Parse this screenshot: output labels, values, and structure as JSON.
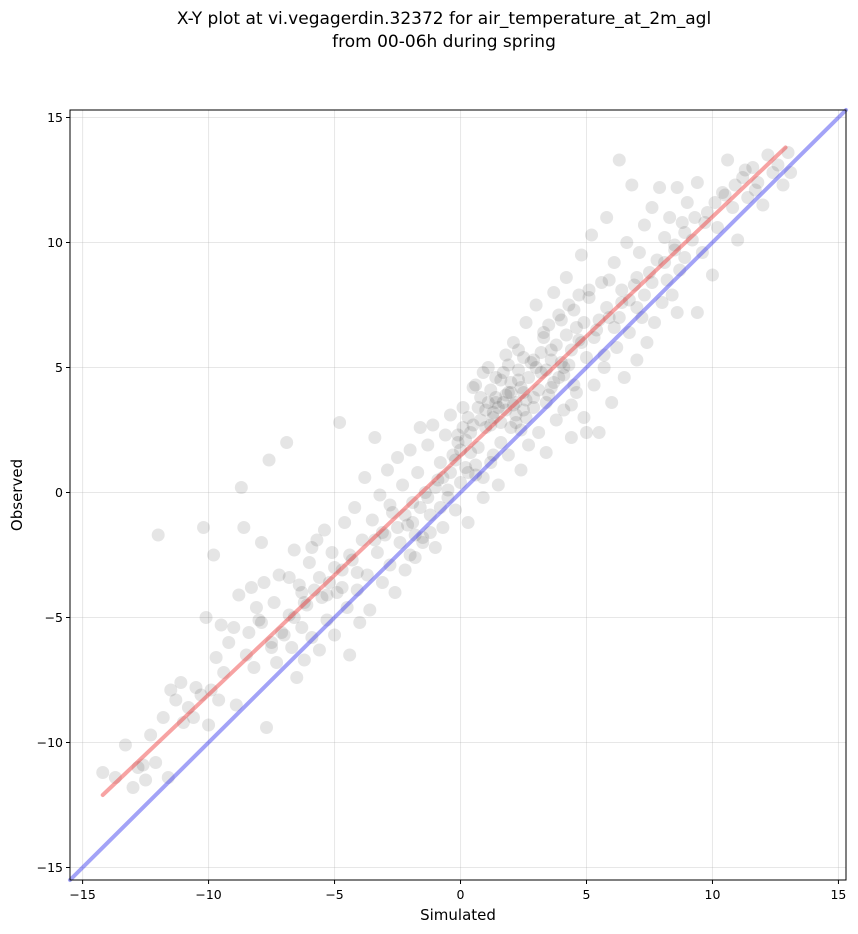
{
  "chart_data": {
    "type": "scatter",
    "title": "X-Y plot at vi.vegagerdin.32372 for air_temperature_at_2m_agl",
    "subtitle": "from 00-06h during spring",
    "xlabel": "Simulated",
    "ylabel": "Observed",
    "xlim": [
      -15.5,
      15.3
    ],
    "ylim": [
      -15.5,
      15.3
    ],
    "xticks": [
      -15,
      -10,
      -5,
      0,
      5,
      10,
      15
    ],
    "yticks": [
      -15,
      -10,
      -5,
      0,
      5,
      10,
      15
    ],
    "xtick_labels": [
      "−15",
      "−10",
      "−5",
      "0",
      "5",
      "10",
      "15"
    ],
    "ytick_labels": [
      "−15",
      "−10",
      "−5",
      "0",
      "5",
      "10",
      "15"
    ],
    "grid": true,
    "marker_color": "#000000",
    "marker_alpha": 0.1,
    "fit_line": {
      "color": "#ee3333",
      "x": [
        -14.2,
        12.9
      ],
      "y": [
        -12.1,
        13.8
      ]
    },
    "identity_line": {
      "color": "#3333ee",
      "x": [
        -15.5,
        15.3
      ],
      "y": [
        -15.5,
        15.3
      ]
    },
    "points": [
      [
        -14.2,
        -11.2
      ],
      [
        -13.3,
        -10.1
      ],
      [
        -13.0,
        -11.8
      ],
      [
        -12.8,
        -11.0
      ],
      [
        -12.5,
        -11.5
      ],
      [
        -12.3,
        -9.7
      ],
      [
        -12.1,
        -10.8
      ],
      [
        -12.0,
        -1.7
      ],
      [
        -11.8,
        -9.0
      ],
      [
        -11.6,
        -11.4
      ],
      [
        -11.3,
        -8.3
      ],
      [
        -11.1,
        -7.6
      ],
      [
        -11.0,
        -9.2
      ],
      [
        -10.8,
        -8.6
      ],
      [
        -10.6,
        -9.0
      ],
      [
        -10.5,
        -7.8
      ],
      [
        -10.3,
        -8.1
      ],
      [
        -10.2,
        -1.4
      ],
      [
        -10.0,
        -9.3
      ],
      [
        -9.9,
        -7.9
      ],
      [
        -9.8,
        -2.5
      ],
      [
        -9.7,
        -6.6
      ],
      [
        -9.6,
        -8.3
      ],
      [
        -9.4,
        -7.2
      ],
      [
        -9.2,
        -6.0
      ],
      [
        -9.0,
        -5.4
      ],
      [
        -8.9,
        -8.5
      ],
      [
        -8.8,
        -4.1
      ],
      [
        -8.7,
        0.2
      ],
      [
        -8.6,
        -1.4
      ],
      [
        -8.5,
        -6.5
      ],
      [
        -8.4,
        -5.6
      ],
      [
        -8.2,
        -7.0
      ],
      [
        -8.1,
        -4.6
      ],
      [
        -8.0,
        -5.1
      ],
      [
        -7.9,
        -2.0
      ],
      [
        -7.8,
        -3.6
      ],
      [
        -7.7,
        -9.4
      ],
      [
        -7.6,
        1.3
      ],
      [
        -7.5,
        -6.0
      ],
      [
        -7.4,
        -4.4
      ],
      [
        -7.3,
        -6.8
      ],
      [
        -7.2,
        -3.3
      ],
      [
        -7.0,
        -5.7
      ],
      [
        -6.9,
        2.0
      ],
      [
        -6.8,
        -4.9
      ],
      [
        -6.7,
        -6.2
      ],
      [
        -6.6,
        -2.3
      ],
      [
        -6.5,
        -7.4
      ],
      [
        -6.4,
        -3.7
      ],
      [
        -6.3,
        -5.4
      ],
      [
        -6.2,
        -6.7
      ],
      [
        -6.1,
        -4.5
      ],
      [
        -6.0,
        -2.8
      ],
      [
        -5.9,
        -5.8
      ],
      [
        -5.8,
        -3.9
      ],
      [
        -5.7,
        -1.9
      ],
      [
        -5.6,
        -6.3
      ],
      [
        -5.5,
        -4.2
      ],
      [
        -5.4,
        -1.5
      ],
      [
        -5.3,
        -5.1
      ],
      [
        -5.2,
        -3.6
      ],
      [
        -5.1,
        -2.4
      ],
      [
        -5.0,
        -5.7
      ],
      [
        -4.9,
        -4.0
      ],
      [
        -4.8,
        2.8
      ],
      [
        -4.7,
        -3.1
      ],
      [
        -4.6,
        -1.2
      ],
      [
        -4.5,
        -4.6
      ],
      [
        -4.4,
        -6.5
      ],
      [
        -4.3,
        -2.7
      ],
      [
        -4.2,
        -0.6
      ],
      [
        -4.1,
        -3.9
      ],
      [
        -4.0,
        -5.2
      ],
      [
        -3.9,
        -1.9
      ],
      [
        -3.8,
        0.6
      ],
      [
        -3.7,
        -3.3
      ],
      [
        -3.6,
        -4.7
      ],
      [
        -3.5,
        -1.1
      ],
      [
        -3.4,
        2.2
      ],
      [
        -3.3,
        -2.4
      ],
      [
        -3.2,
        -0.1
      ],
      [
        -3.1,
        -3.6
      ],
      [
        -3.0,
        -1.7
      ],
      [
        -2.9,
        0.9
      ],
      [
        -2.8,
        -2.9
      ],
      [
        -2.7,
        -0.8
      ],
      [
        -2.6,
        -4.0
      ],
      [
        -2.5,
        1.4
      ],
      [
        -2.4,
        -2.0
      ],
      [
        -2.3,
        0.3
      ],
      [
        -2.2,
        -3.1
      ],
      [
        -2.1,
        -1.3
      ],
      [
        -2.0,
        1.7
      ],
      [
        -1.9,
        -0.4
      ],
      [
        -1.8,
        -2.6
      ],
      [
        -1.7,
        0.8
      ],
      [
        -1.6,
        2.6
      ],
      [
        -1.5,
        -1.8
      ],
      [
        -1.4,
        0.0
      ],
      [
        -1.3,
        1.9
      ],
      [
        -1.2,
        -0.9
      ],
      [
        -1.1,
        2.7
      ],
      [
        -1.0,
        -2.2
      ],
      [
        -0.9,
        0.5
      ],
      [
        -0.8,
        1.2
      ],
      [
        -0.7,
        -1.4
      ],
      [
        -0.6,
        2.3
      ],
      [
        -0.5,
        0.1
      ],
      [
        -0.4,
        3.1
      ],
      [
        -0.3,
        1.5
      ],
      [
        -0.2,
        -0.7
      ],
      [
        -0.1,
        2.0
      ],
      [
        0.0,
        0.4
      ],
      [
        0.1,
        3.4
      ],
      [
        0.2,
        1.0
      ],
      [
        0.3,
        -1.2
      ],
      [
        0.4,
        2.4
      ],
      [
        0.5,
        4.2
      ],
      [
        0.6,
        0.7
      ],
      [
        0.7,
        1.8
      ],
      [
        0.8,
        3.8
      ],
      [
        0.9,
        -0.2
      ],
      [
        1.0,
        2.6
      ],
      [
        1.1,
        5.0
      ],
      [
        1.2,
        1.2
      ],
      [
        1.3,
        3.2
      ],
      [
        1.4,
        4.6
      ],
      [
        1.5,
        0.3
      ],
      [
        1.6,
        2.0
      ],
      [
        1.7,
        3.6
      ],
      [
        1.8,
        5.5
      ],
      [
        1.9,
        1.5
      ],
      [
        2.0,
        4.0
      ],
      [
        2.1,
        6.0
      ],
      [
        2.2,
        2.8
      ],
      [
        2.3,
        4.5
      ],
      [
        2.4,
        0.9
      ],
      [
        2.5,
        3.3
      ],
      [
        2.6,
        6.8
      ],
      [
        2.7,
        1.9
      ],
      [
        2.8,
        5.2
      ],
      [
        2.9,
        3.8
      ],
      [
        3.0,
        7.5
      ],
      [
        3.1,
        2.4
      ],
      [
        3.2,
        4.8
      ],
      [
        3.3,
        6.2
      ],
      [
        3.4,
        1.6
      ],
      [
        3.5,
        3.9
      ],
      [
        3.6,
        5.7
      ],
      [
        3.7,
        8.0
      ],
      [
        3.8,
        2.9
      ],
      [
        3.9,
        4.6
      ],
      [
        4.0,
        6.9
      ],
      [
        4.1,
        3.3
      ],
      [
        4.2,
        8.6
      ],
      [
        4.3,
        5.1
      ],
      [
        4.4,
        2.2
      ],
      [
        4.5,
        7.3
      ],
      [
        4.6,
        4.0
      ],
      [
        4.7,
        6.1
      ],
      [
        4.8,
        9.5
      ],
      [
        4.9,
        3.0
      ],
      [
        5.0,
        5.4
      ],
      [
        5.1,
        7.8
      ],
      [
        5.2,
        10.3
      ],
      [
        5.3,
        4.3
      ],
      [
        5.4,
        6.5
      ],
      [
        5.5,
        2.4
      ],
      [
        5.6,
        8.4
      ],
      [
        5.7,
        5.0
      ],
      [
        5.8,
        11.0
      ],
      [
        5.9,
        7.0
      ],
      [
        6.0,
        3.6
      ],
      [
        6.1,
        9.2
      ],
      [
        6.2,
        5.8
      ],
      [
        6.3,
        13.3
      ],
      [
        6.4,
        7.6
      ],
      [
        6.5,
        4.6
      ],
      [
        6.6,
        10.0
      ],
      [
        6.7,
        6.4
      ],
      [
        6.8,
        12.3
      ],
      [
        6.9,
        8.3
      ],
      [
        7.0,
        5.3
      ],
      [
        7.1,
        9.6
      ],
      [
        7.2,
        7.0
      ],
      [
        7.3,
        10.7
      ],
      [
        7.4,
        6.0
      ],
      [
        7.5,
        8.8
      ],
      [
        7.6,
        11.4
      ],
      [
        7.7,
        6.8
      ],
      [
        7.8,
        9.3
      ],
      [
        7.9,
        12.2
      ],
      [
        8.0,
        7.6
      ],
      [
        8.1,
        10.2
      ],
      [
        8.2,
        8.5
      ],
      [
        8.3,
        11.0
      ],
      [
        8.4,
        7.9
      ],
      [
        8.5,
        9.7
      ],
      [
        8.6,
        12.2
      ],
      [
        8.7,
        8.9
      ],
      [
        8.8,
        10.8
      ],
      [
        8.9,
        9.4
      ],
      [
        9.0,
        11.6
      ],
      [
        9.2,
        10.1
      ],
      [
        9.4,
        12.4
      ],
      [
        9.6,
        9.6
      ],
      [
        9.8,
        11.2
      ],
      [
        10.0,
        8.7
      ],
      [
        10.2,
        10.6
      ],
      [
        10.4,
        12.0
      ],
      [
        10.6,
        13.3
      ],
      [
        10.8,
        11.4
      ],
      [
        11.0,
        10.1
      ],
      [
        11.2,
        12.6
      ],
      [
        11.4,
        11.8
      ],
      [
        11.6,
        13.0
      ],
      [
        11.8,
        12.4
      ],
      [
        12.0,
        11.5
      ],
      [
        12.2,
        13.5
      ],
      [
        12.4,
        12.8
      ],
      [
        12.6,
        13.1
      ],
      [
        12.8,
        12.3
      ],
      [
        13.0,
        13.6
      ],
      [
        13.1,
        12.8
      ],
      [
        7.0,
        7.4
      ],
      [
        5.0,
        2.4
      ],
      [
        8.6,
        7.2
      ],
      [
        9.4,
        7.2
      ],
      [
        4.5,
        4.3
      ],
      [
        -9.5,
        -5.3
      ],
      [
        -8.3,
        -3.8
      ],
      [
        -7.9,
        -5.2
      ],
      [
        -6.3,
        -4.0
      ],
      [
        -6.8,
        -3.4
      ],
      [
        -5.9,
        -2.2
      ],
      [
        -10.1,
        -5.0
      ],
      [
        -11.5,
        -7.9
      ],
      [
        -12.6,
        -10.9
      ],
      [
        -13.7,
        -11.4
      ],
      [
        0.6,
        4.3
      ],
      [
        0.9,
        4.8
      ],
      [
        1.2,
        4.1
      ],
      [
        1.4,
        3.8
      ],
      [
        1.6,
        4.5
      ],
      [
        1.8,
        3.9
      ],
      [
        2.0,
        4.4
      ],
      [
        2.2,
        3.6
      ],
      [
        2.4,
        4.2
      ],
      [
        2.6,
        3.7
      ],
      [
        1.5,
        3.4
      ],
      [
        1.7,
        4.8
      ],
      [
        1.9,
        4.0
      ],
      [
        2.1,
        3.5
      ],
      [
        2.3,
        4.9
      ],
      [
        2.5,
        4.0
      ],
      [
        1.3,
        3.0
      ],
      [
        2.7,
        4.6
      ],
      [
        1.1,
        3.6
      ],
      [
        2.9,
        3.4
      ],
      [
        0.8,
        2.9
      ],
      [
        1.0,
        3.3
      ],
      [
        1.2,
        2.7
      ],
      [
        1.4,
        3.6
      ],
      [
        1.6,
        2.8
      ],
      [
        1.8,
        3.3
      ],
      [
        2.0,
        2.6
      ],
      [
        2.2,
        3.1
      ],
      [
        2.4,
        2.5
      ],
      [
        2.6,
        3.0
      ],
      [
        3.0,
        5.0
      ],
      [
        3.2,
        5.6
      ],
      [
        3.4,
        4.9
      ],
      [
        3.6,
        5.3
      ],
      [
        3.8,
        5.9
      ],
      [
        4.0,
        5.2
      ],
      [
        4.2,
        6.3
      ],
      [
        4.4,
        5.7
      ],
      [
        4.6,
        6.6
      ],
      [
        4.8,
        6.0
      ],
      [
        -0.2,
        1.3
      ],
      [
        0.0,
        1.7
      ],
      [
        0.2,
        2.1
      ],
      [
        0.4,
        1.6
      ],
      [
        -0.4,
        0.8
      ],
      [
        0.1,
        2.6
      ],
      [
        0.3,
        3.0
      ],
      [
        -0.1,
        2.3
      ],
      [
        0.5,
        2.7
      ],
      [
        0.7,
        3.4
      ],
      [
        -2.5,
        -1.4
      ],
      [
        -2.2,
        -0.9
      ],
      [
        -1.9,
        -1.2
      ],
      [
        -1.6,
        -0.6
      ],
      [
        -1.3,
        -0.2
      ],
      [
        -1.0,
        0.2
      ],
      [
        -0.7,
        0.6
      ],
      [
        -3.1,
        -1.6
      ],
      [
        -3.4,
        -1.9
      ],
      [
        -2.8,
        -0.5
      ],
      [
        -5.6,
        -3.4
      ],
      [
        -5.3,
        -4.1
      ],
      [
        -5.0,
        -3.0
      ],
      [
        -4.7,
        -3.8
      ],
      [
        -4.4,
        -2.5
      ],
      [
        -4.1,
        -3.2
      ],
      [
        -6.2,
        -4.4
      ],
      [
        -6.6,
        -5.0
      ],
      [
        -7.1,
        -5.6
      ],
      [
        -7.5,
        -6.2
      ],
      [
        5.5,
        6.9
      ],
      [
        5.8,
        7.4
      ],
      [
        6.1,
        6.6
      ],
      [
        6.4,
        8.1
      ],
      [
        6.7,
        7.7
      ],
      [
        7.0,
        8.6
      ],
      [
        6.3,
        7.0
      ],
      [
        5.9,
        8.5
      ],
      [
        7.3,
        7.9
      ],
      [
        7.6,
        8.4
      ],
      [
        3.5,
        6.7
      ],
      [
        3.9,
        7.1
      ],
      [
        4.3,
        7.5
      ],
      [
        4.7,
        7.9
      ],
      [
        5.1,
        8.1
      ],
      [
        3.3,
        6.4
      ],
      [
        4.1,
        5.0
      ],
      [
        4.9,
        6.8
      ],
      [
        5.3,
        6.2
      ],
      [
        5.7,
        5.5
      ],
      [
        8.1,
        9.2
      ],
      [
        8.5,
        9.9
      ],
      [
        8.9,
        10.4
      ],
      [
        9.3,
        11.0
      ],
      [
        9.7,
        10.8
      ],
      [
        10.1,
        11.6
      ],
      [
        10.5,
        11.9
      ],
      [
        10.9,
        12.3
      ],
      [
        11.3,
        12.9
      ],
      [
        11.7,
        12.1
      ],
      [
        3.1,
        4.1
      ],
      [
        3.4,
        3.6
      ],
      [
        3.7,
        4.4
      ],
      [
        2.9,
        5.3
      ],
      [
        2.3,
        5.7
      ],
      [
        1.9,
        5.1
      ],
      [
        2.5,
        5.4
      ],
      [
        3.6,
        4.2
      ],
      [
        4.1,
        4.7
      ],
      [
        4.4,
        3.5
      ],
      [
        -0.8,
        -0.6
      ],
      [
        -0.5,
        -0.2
      ],
      [
        -1.2,
        -1.6
      ],
      [
        -1.5,
        -2.0
      ],
      [
        -1.8,
        -1.7
      ],
      [
        -2.0,
        -2.5
      ],
      [
        0.3,
        0.8
      ],
      [
        0.6,
        1.1
      ],
      [
        0.9,
        0.6
      ],
      [
        1.3,
        1.5
      ]
    ]
  }
}
